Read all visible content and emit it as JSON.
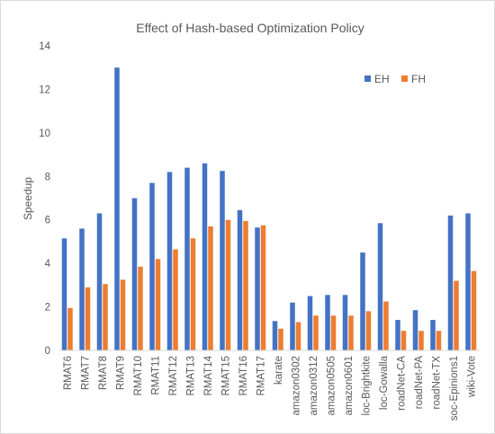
{
  "chart_data": {
    "type": "bar",
    "title": "Effect of Hash-based Optimization Policy",
    "xlabel": "",
    "ylabel": "Speedup",
    "ylim": [
      0,
      14
    ],
    "yticks": [
      0,
      2,
      4,
      6,
      8,
      10,
      12,
      14
    ],
    "grid": false,
    "legend_position": "top-right",
    "categories": [
      "RMAT6",
      "RMAT7",
      "RMAT8",
      "RMAT9",
      "RMAT10",
      "RMAT11",
      "RMAT12",
      "RMAT13",
      "RMAT14",
      "RMAT15",
      "RMAT16",
      "RMAT17",
      "karate",
      "amazon0302",
      "amazon0312",
      "amazon0505",
      "amazon0601",
      "loc-Brightkite",
      "loc-Gowalla",
      "roadNet-CA",
      "roadNet-PA",
      "roadNet-TX",
      "soc-Epinions1",
      "wiki-Vote"
    ],
    "series": [
      {
        "name": "EH",
        "color": "#4472C4",
        "values": [
          5.15,
          5.6,
          6.3,
          13.0,
          7.0,
          7.7,
          8.2,
          8.4,
          8.6,
          8.25,
          6.45,
          5.65,
          1.35,
          2.2,
          2.5,
          2.55,
          2.55,
          4.5,
          5.85,
          1.4,
          1.85,
          1.4,
          6.2,
          6.3
        ]
      },
      {
        "name": "FH",
        "color": "#ED7D31",
        "values": [
          1.95,
          2.9,
          3.05,
          3.25,
          3.85,
          4.2,
          4.65,
          5.15,
          5.7,
          6.0,
          5.95,
          5.75,
          1.0,
          1.3,
          1.6,
          1.6,
          1.6,
          1.8,
          2.25,
          0.9,
          0.9,
          0.9,
          3.2,
          3.65
        ]
      }
    ]
  }
}
